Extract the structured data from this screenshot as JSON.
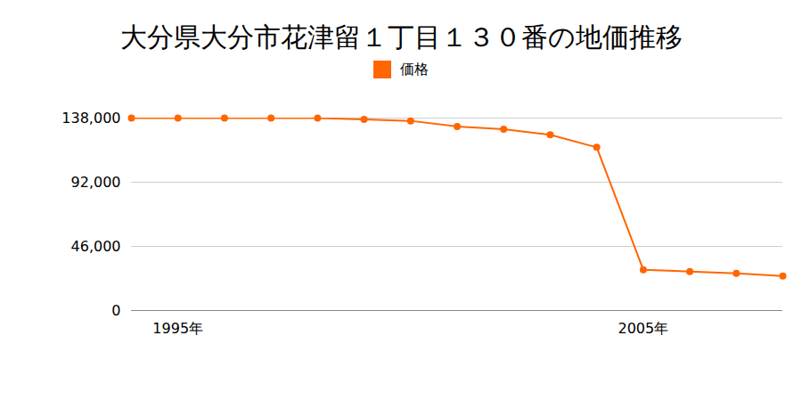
{
  "chart_data": {
    "type": "line",
    "title": "大分県大分市花津留１丁目１３０番の地価推移",
    "x": [
      1994,
      1995,
      1996,
      1997,
      1998,
      1999,
      2000,
      2001,
      2002,
      2003,
      2004,
      2005,
      2006,
      2007,
      2008
    ],
    "series": [
      {
        "name": "価格",
        "color": "#ff6600",
        "marker": "circle",
        "values": [
          138000,
          138000,
          138000,
          138000,
          138000,
          137000,
          136000,
          132000,
          130000,
          126000,
          117000,
          29300,
          28000,
          26700,
          24800
        ]
      }
    ],
    "xlim": [
      1994,
      2008
    ],
    "xticks": [
      {
        "value": 1995,
        "label": "1995年"
      },
      {
        "value": 2005,
        "label": "2005年"
      }
    ],
    "ylim": [
      0,
      138000
    ],
    "yticks": [
      0,
      {
        "value": 46000,
        "label": "46,000"
      },
      {
        "value": 92000,
        "label": "92,000"
      },
      {
        "value": 138000,
        "label": "138,000"
      }
    ],
    "grid": true,
    "legend": "top"
  }
}
